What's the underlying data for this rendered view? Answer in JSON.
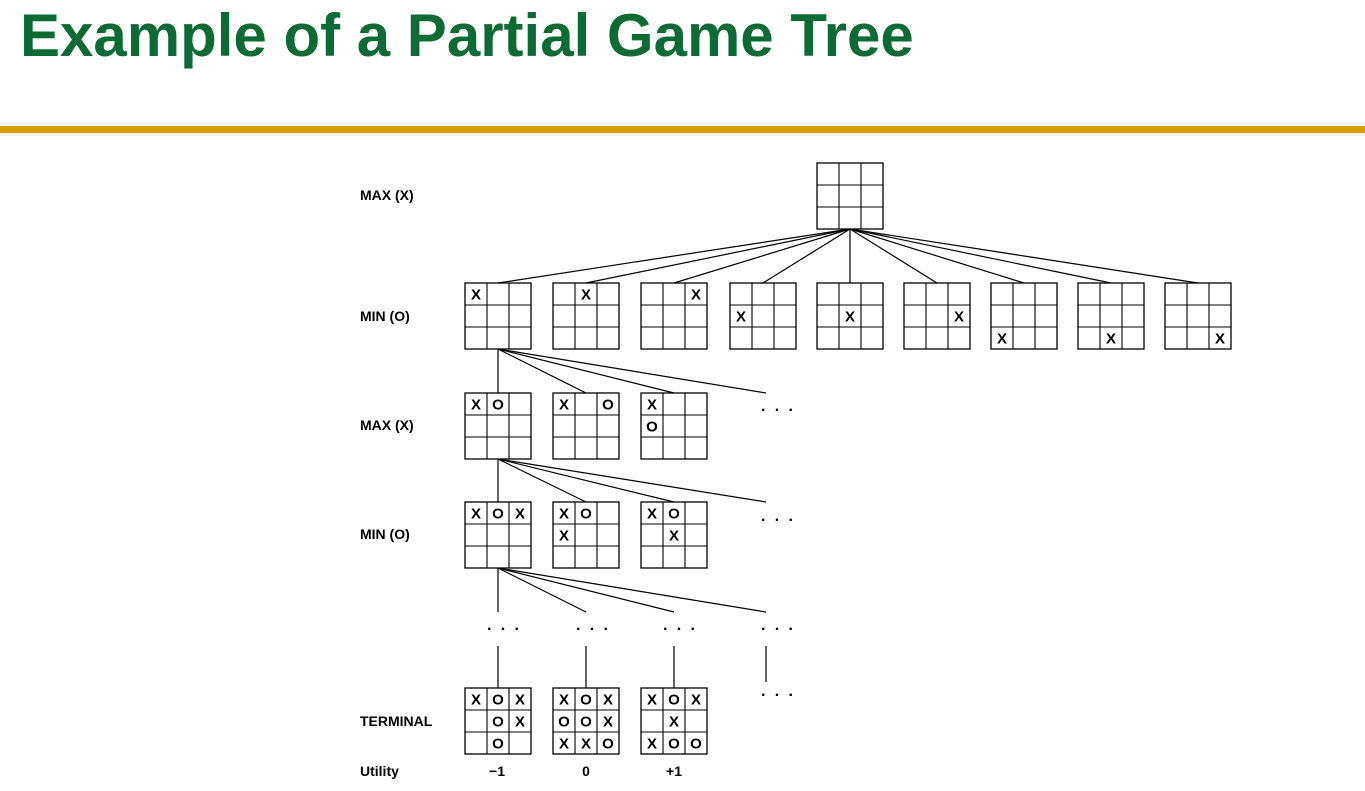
{
  "title": "Example of a Partial Game Tree",
  "colors": {
    "title": "#0c6b35",
    "rule": "#d29e00",
    "lines": "#000000"
  },
  "levels": {
    "max_x_top": "MAX (X)",
    "min_o_1": "MIN (O)",
    "max_x_2": "MAX (X)",
    "min_o_2": "MIN (O)",
    "terminal": "TERMINAL",
    "utility": "Utility"
  },
  "ellipsis": "· · ·",
  "boards": {
    "root": [
      "",
      "",
      "",
      "",
      "",
      "",
      "",
      "",
      ""
    ],
    "level1": [
      [
        "X",
        "",
        "",
        "",
        "",
        "",
        "",
        "",
        ""
      ],
      [
        "",
        "X",
        "",
        "",
        "",
        "",
        "",
        "",
        ""
      ],
      [
        "",
        "",
        "X",
        "",
        "",
        "",
        "",
        "",
        ""
      ],
      [
        "",
        "",
        "",
        "X",
        "",
        "",
        "",
        "",
        ""
      ],
      [
        "",
        "",
        "",
        "",
        "X",
        "",
        "",
        "",
        ""
      ],
      [
        "",
        "",
        "",
        "",
        "",
        "X",
        "",
        "",
        ""
      ],
      [
        "",
        "",
        "",
        "",
        "",
        "",
        "X",
        "",
        ""
      ],
      [
        "",
        "",
        "",
        "",
        "",
        "",
        "",
        "X",
        ""
      ],
      [
        "",
        "",
        "",
        "",
        "",
        "",
        "",
        "",
        "X"
      ]
    ],
    "level2": [
      [
        "X",
        "O",
        "",
        "",
        "",
        "",
        "",
        "",
        ""
      ],
      [
        "X",
        "",
        "O",
        "",
        "",
        "",
        "",
        "",
        ""
      ],
      [
        "X",
        "",
        "",
        "O",
        "",
        "",
        "",
        "",
        ""
      ]
    ],
    "level3": [
      [
        "X",
        "O",
        "X",
        "",
        "",
        "",
        "",
        "",
        ""
      ],
      [
        "X",
        "O",
        "",
        "X",
        "",
        "",
        "",
        "",
        ""
      ],
      [
        "X",
        "O",
        "",
        "",
        "X",
        "",
        "",
        "",
        ""
      ]
    ],
    "terminal": [
      [
        "X",
        "O",
        "X",
        "",
        "O",
        "X",
        "",
        "O",
        ""
      ],
      [
        "X",
        "O",
        "X",
        "O",
        "O",
        "X",
        "X",
        "X",
        "O"
      ],
      [
        "X",
        "O",
        "X",
        "",
        "X",
        "",
        "X",
        "O",
        "O"
      ]
    ]
  },
  "utilities": [
    "−1",
    "0",
    "+1"
  ]
}
